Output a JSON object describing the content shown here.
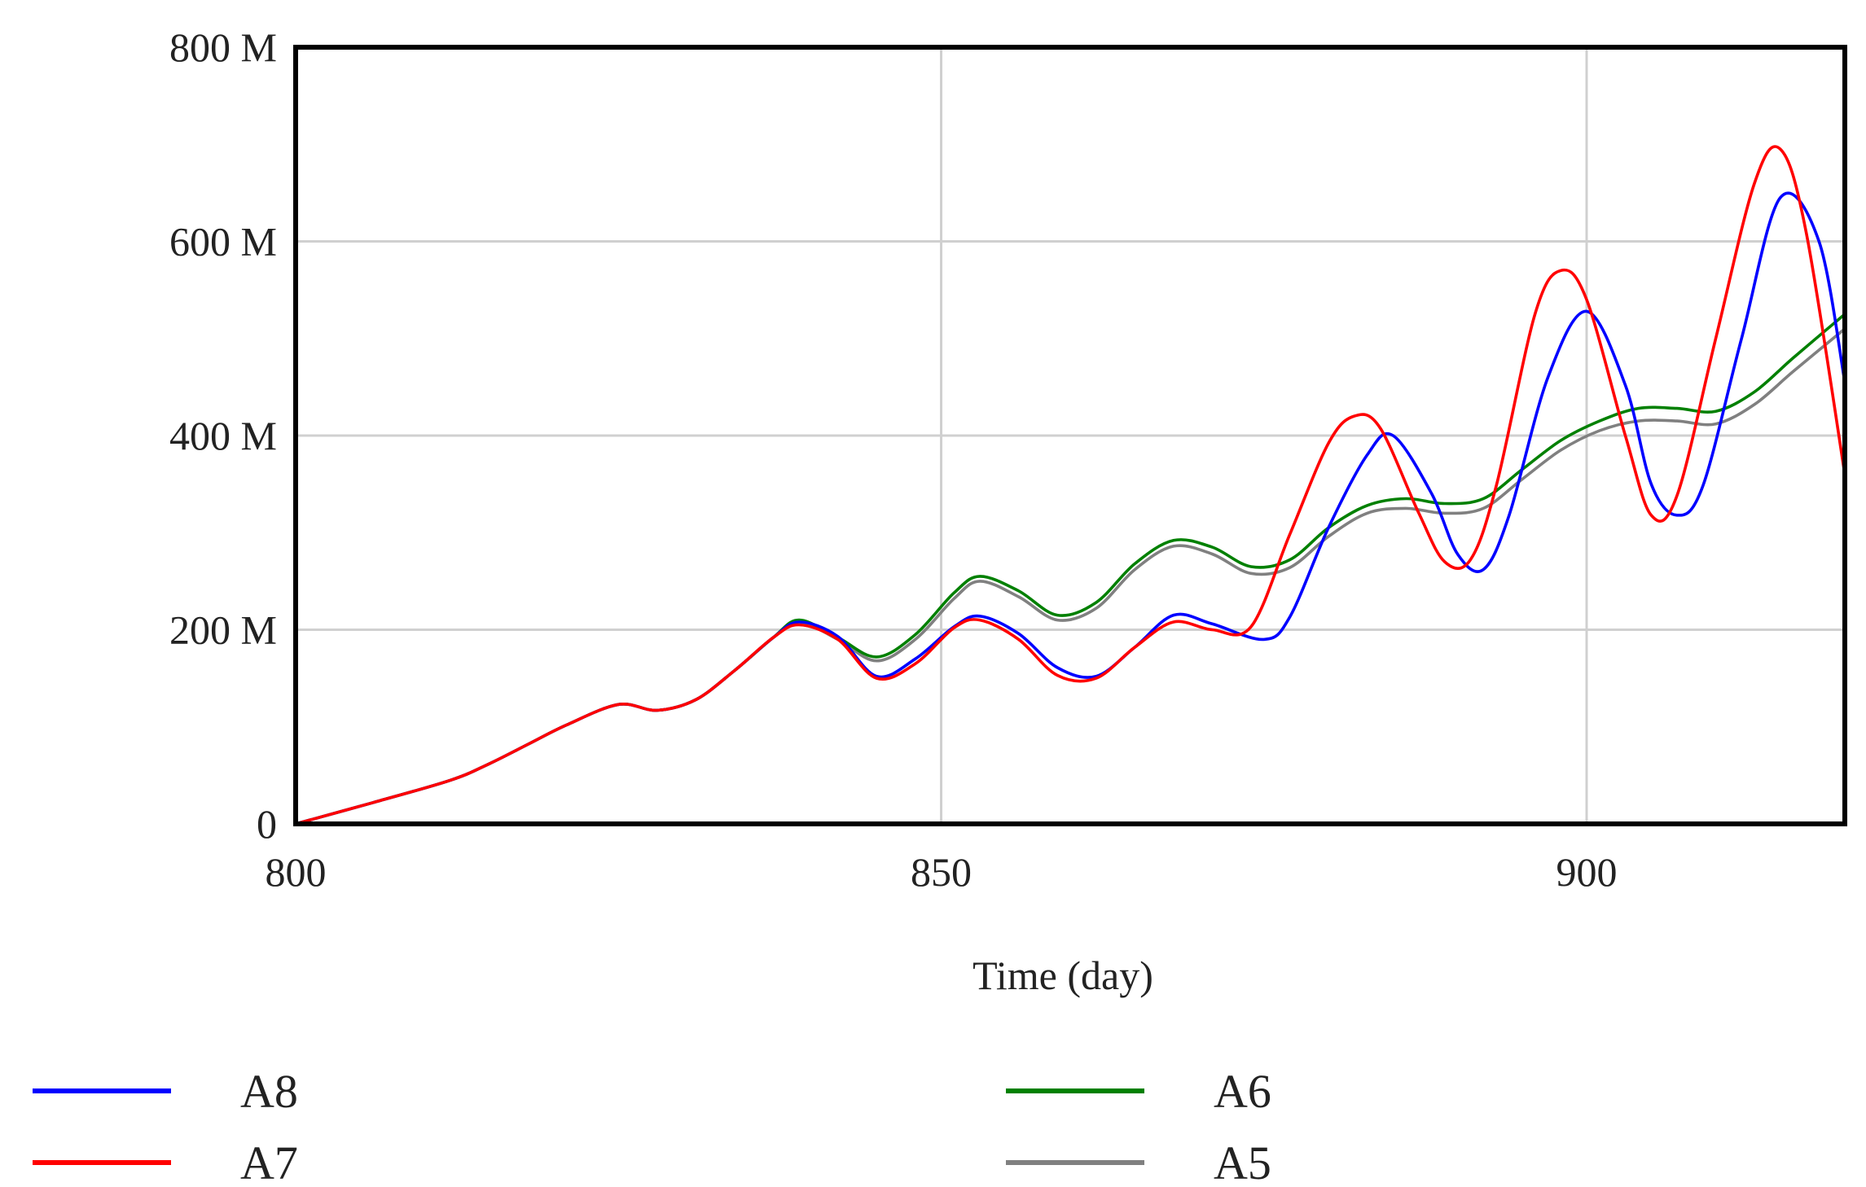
{
  "chart_data": {
    "type": "line",
    "title": "",
    "xlabel": "Time (day)",
    "ylabel": "",
    "xlim": [
      800,
      920
    ],
    "ylim": [
      0,
      800000000
    ],
    "x_ticks": [
      800,
      850,
      900
    ],
    "y_ticks": [
      {
        "value": 0,
        "label": "0"
      },
      {
        "value": 200000000,
        "label": "200 M"
      },
      {
        "value": 400000000,
        "label": "400 M"
      },
      {
        "value": 600000000,
        "label": "600 M"
      },
      {
        "value": 800000000,
        "label": "800 M"
      }
    ],
    "grid": true,
    "legend_position": "bottom",
    "series": [
      {
        "name": "A8",
        "color": "#0000ff",
        "x": [
          800,
          806,
          812,
          815,
          818,
          821,
          825,
          828,
          831,
          834,
          837,
          839,
          842,
          845,
          848,
          851,
          853,
          856,
          859,
          862,
          865,
          868,
          871,
          875,
          877,
          880,
          883,
          885,
          888,
          890,
          892,
          894,
          897,
          900,
          903,
          905,
          907,
          909,
          912,
          915,
          918,
          920
        ],
        "y": [
          0,
          22,
          45,
          62,
          82,
          102,
          123,
          117,
          128,
          158,
          192,
          208,
          193,
          152,
          170,
          203,
          214,
          196,
          161,
          152,
          182,
          215,
          206,
          190,
          213,
          305,
          380,
          400,
          340,
          278,
          262,
          318,
          460,
          528,
          452,
          350,
          318,
          348,
          500,
          645,
          600,
          455
        ]
      },
      {
        "name": "A7",
        "color": "#ff0000",
        "x": [
          800,
          806,
          812,
          815,
          818,
          821,
          825,
          828,
          831,
          834,
          837,
          839,
          842,
          845,
          848,
          851,
          853,
          856,
          859,
          862,
          865,
          868,
          871,
          874,
          877,
          880,
          882,
          884,
          887,
          889,
          891,
          893,
          896,
          898,
          900,
          903,
          905,
          907,
          910,
          913,
          915,
          917,
          920
        ],
        "y": [
          0,
          22,
          45,
          62,
          82,
          102,
          123,
          117,
          128,
          158,
          192,
          205,
          190,
          150,
          165,
          202,
          210,
          190,
          153,
          150,
          182,
          208,
          200,
          203,
          298,
          392,
          420,
          408,
          320,
          270,
          272,
          348,
          525,
          570,
          540,
          400,
          318,
          338,
          500,
          660,
          695,
          610,
          360
        ]
      },
      {
        "name": "A6",
        "color": "#008000",
        "x": [
          800,
          806,
          812,
          815,
          818,
          821,
          825,
          828,
          831,
          834,
          837,
          839,
          842,
          845,
          848,
          851,
          853,
          856,
          859,
          862,
          865,
          868,
          871,
          874,
          877,
          880,
          883,
          886,
          889,
          892,
          895,
          898,
          901,
          904,
          907,
          910,
          913,
          916,
          920
        ],
        "y": [
          0,
          22,
          45,
          62,
          82,
          102,
          123,
          117,
          128,
          158,
          192,
          210,
          192,
          172,
          195,
          238,
          255,
          240,
          215,
          228,
          268,
          292,
          285,
          265,
          272,
          305,
          328,
          335,
          330,
          335,
          365,
          395,
          415,
          428,
          428,
          425,
          445,
          480,
          525
        ]
      },
      {
        "name": "A5",
        "color": "#808080",
        "x": [
          800,
          806,
          812,
          815,
          818,
          821,
          825,
          828,
          831,
          834,
          837,
          839,
          842,
          845,
          848,
          851,
          853,
          856,
          859,
          862,
          865,
          868,
          871,
          874,
          877,
          880,
          883,
          886,
          889,
          892,
          895,
          898,
          901,
          904,
          907,
          910,
          913,
          916,
          920
        ],
        "y": [
          0,
          22,
          45,
          62,
          82,
          102,
          123,
          117,
          128,
          158,
          192,
          208,
          190,
          168,
          190,
          232,
          250,
          234,
          210,
          222,
          262,
          286,
          278,
          258,
          264,
          296,
          320,
          325,
          320,
          325,
          355,
          385,
          405,
          415,
          415,
          412,
          432,
          466,
          510
        ]
      }
    ]
  }
}
